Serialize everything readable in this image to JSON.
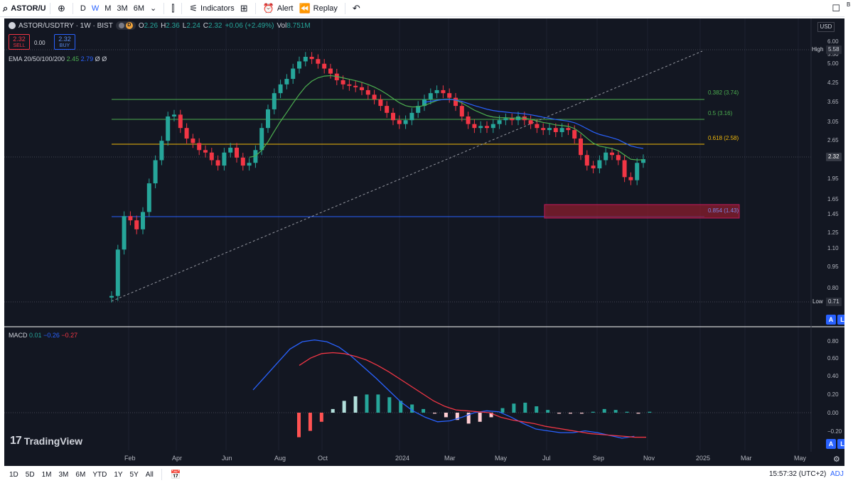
{
  "toolbar": {
    "symbol": "ASTOR/US",
    "add_icon": "plus-circle-icon",
    "intervals": [
      "D",
      "W",
      "M",
      "3M",
      "6M"
    ],
    "active_interval": "W",
    "candles_icon": "candles-icon",
    "indicators_label": "Indicators",
    "templates_icon": "grid-icon",
    "alert_label": "Alert",
    "replay_label": "Replay",
    "undo_icon": "undo-icon",
    "fullscreen_icon": "square-icon",
    "right_edge_char": "B"
  },
  "legend": {
    "title": "ASTOR/USDTRY · 1W · BIST",
    "open_k": "O",
    "open_v": "2.26",
    "high_k": "H",
    "high_v": "2.36",
    "low_k": "L",
    "low_v": "2.24",
    "close_k": "C",
    "close_v": "2.32",
    "change": "+0.06 (+2.49%)",
    "vol_k": "Vol",
    "vol_v": "8.751M",
    "pill_d": "D"
  },
  "trade": {
    "sell_price": "2.32",
    "sell_label": "SELL",
    "spread": "0.00",
    "buy_price": "2.32",
    "buy_label": "BUY"
  },
  "ema_legend": {
    "label": "EMA 20/50/100/200",
    "v1": "2.45",
    "v2": "2.79",
    "v3": "Ø",
    "v4": "Ø"
  },
  "macd_legend": {
    "label": "MACD",
    "v1": "0.01",
    "v2": "−0.26",
    "v3": "−0.27"
  },
  "watermark": {
    "logo": "17",
    "text": "TradingView"
  },
  "price_axis": {
    "currency": "USD",
    "high_label": "High",
    "high_value": "5.58",
    "low_label": "Low",
    "low_value": "0.71",
    "current": "2.32",
    "ticks": [
      "6.00",
      "5.50",
      "5.00",
      "4.25",
      "3.65",
      "3.05",
      "2.65",
      "2.32",
      "1.95",
      "1.65",
      "1.45",
      "1.25",
      "1.10",
      "0.95",
      "0.80"
    ]
  },
  "macd_axis": {
    "ticks": [
      "0.80",
      "0.60",
      "0.40",
      "0.20",
      "0.00",
      "−0.20"
    ]
  },
  "time_axis": {
    "labels": [
      "Feb",
      "Apr",
      "Jun",
      "Aug",
      "Oct",
      "2024",
      "Mar",
      "May",
      "Jul",
      "Sep",
      "Nov",
      "2025",
      "Mar",
      "May"
    ]
  },
  "fib": [
    {
      "label": "0.382 (3.74)",
      "color": "#4caf50"
    },
    {
      "label": "0.5 (3.16)",
      "color": "#4caf50"
    },
    {
      "label": "0.618 (2.58)",
      "color": "#f0b90b"
    },
    {
      "label": "0.854 (1.43)",
      "color": "#5b6ee1"
    }
  ],
  "axis_buttons": {
    "a": "A",
    "l": "L"
  },
  "bottom": {
    "ranges": [
      "1D",
      "5D",
      "1M",
      "3M",
      "6M",
      "YTD",
      "1Y",
      "5Y",
      "All"
    ],
    "calendar_icon": "calendar-icon",
    "clock": "15:57:32 (UTC+2)",
    "adj": "ADJ"
  },
  "colors": {
    "bg": "#131722",
    "up": "#26a69a",
    "down": "#f23645",
    "ema20": "#4caf50",
    "ema50": "#2962ff"
  },
  "chart_data": {
    "type": "candlestick",
    "title": "ASTOR/USDTRY · 1W · BIST",
    "x_axis_labels": [
      "Feb",
      "Apr",
      "Jun",
      "Aug",
      "Oct",
      "2024",
      "Mar",
      "May",
      "Jul",
      "Sep",
      "Nov",
      "2025",
      "Mar",
      "May"
    ],
    "price_range": [
      0.71,
      6.0
    ],
    "close_series": [
      0.75,
      1.1,
      1.45,
      1.4,
      1.3,
      1.5,
      1.9,
      2.3,
      2.7,
      3.3,
      3.35,
      3.0,
      2.75,
      2.65,
      2.5,
      2.45,
      2.3,
      2.2,
      2.45,
      2.55,
      2.35,
      2.2,
      2.25,
      2.5,
      3.0,
      3.5,
      4.0,
      4.3,
      4.5,
      4.9,
      5.2,
      5.4,
      5.3,
      5.1,
      4.9,
      4.7,
      4.45,
      4.3,
      4.25,
      4.2,
      4.1,
      3.95,
      3.8,
      3.6,
      3.4,
      3.2,
      3.1,
      3.2,
      3.4,
      3.6,
      3.8,
      4.0,
      4.1,
      4.0,
      3.85,
      3.6,
      3.3,
      3.1,
      3.0,
      3.05,
      3.0,
      3.1,
      3.2,
      3.25,
      3.2,
      3.3,
      3.2,
      3.1,
      3.0,
      2.95,
      3.0,
      2.9,
      3.0,
      2.95,
      2.75,
      2.4,
      2.2,
      2.15,
      2.3,
      2.45,
      2.4,
      2.3,
      2.0,
      1.95,
      2.25,
      2.32
    ],
    "ema20_last": 2.45,
    "ema50_last": 2.79,
    "fib_levels": [
      {
        "ratio": 0.382,
        "price": 3.74
      },
      {
        "ratio": 0.5,
        "price": 3.16
      },
      {
        "ratio": 0.618,
        "price": 2.58
      },
      {
        "ratio": 0.854,
        "price": 1.43
      }
    ],
    "high": 5.58,
    "low": 0.71,
    "macd": {
      "macd_line": [
        0.25,
        0.4,
        0.55,
        0.7,
        0.78,
        0.8,
        0.78,
        0.72,
        0.62,
        0.5,
        0.38,
        0.25,
        0.12,
        0.02,
        -0.05,
        -0.1,
        -0.09,
        -0.05,
        0.0,
        0.02,
        0.01,
        -0.05,
        -0.12,
        -0.18,
        -0.2,
        -0.22,
        -0.22,
        -0.2,
        -0.22,
        -0.25,
        -0.28,
        -0.26
      ],
      "signal_line": [
        0.52,
        0.6,
        0.65,
        0.66,
        0.65,
        0.62,
        0.58,
        0.52,
        0.45,
        0.37,
        0.29,
        0.21,
        0.13,
        0.07,
        0.03,
        0.02,
        0.01,
        0.0,
        -0.05,
        -0.08,
        -0.1,
        -0.12,
        -0.15,
        -0.17,
        -0.19,
        -0.21,
        -0.23,
        -0.24,
        -0.25,
        -0.26,
        -0.27,
        -0.27
      ],
      "ylim": [
        -0.3,
        0.85
      ]
    }
  }
}
